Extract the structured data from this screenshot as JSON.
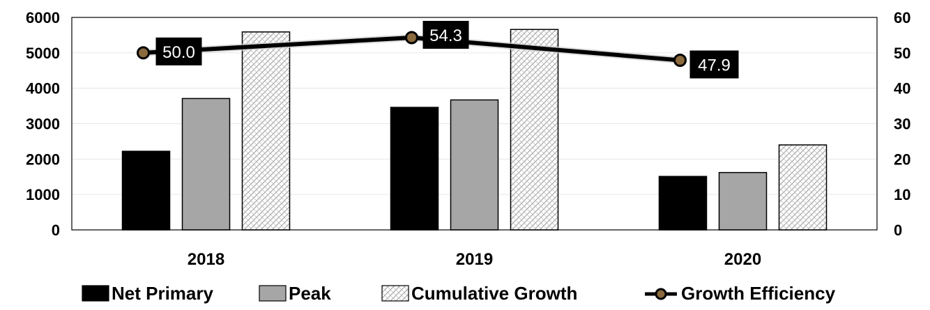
{
  "chart_data": {
    "type": "bar",
    "categories": [
      "2018",
      "2019",
      "2020"
    ],
    "series": [
      {
        "name": "Net Primary",
        "values": [
          2220,
          3460,
          1510
        ],
        "color": "#000000",
        "fill": "solid"
      },
      {
        "name": "Peak",
        "values": [
          3710,
          3670,
          1620
        ],
        "color": "#a6a6a6",
        "fill": "solid"
      },
      {
        "name": "Cumulative Growth",
        "values": [
          5590,
          5660,
          2400
        ],
        "color": "#ffffff",
        "fill": "hatch"
      }
    ],
    "line_series": {
      "name": "Growth Efficiency",
      "values": [
        50.0,
        54.3,
        47.9
      ],
      "labels": [
        "50.0",
        "54.3",
        "47.9"
      ],
      "axis": "right",
      "color": "#000000",
      "marker_color": "#8b6a3e"
    },
    "y_left": {
      "min": 0,
      "max": 6000,
      "ticks": [
        "0",
        "1000",
        "2000",
        "3000",
        "4000",
        "5000",
        "6000"
      ]
    },
    "y_right": {
      "min": 0,
      "max": 60,
      "ticks": [
        "0",
        "10",
        "20",
        "30",
        "40",
        "50",
        "60"
      ]
    },
    "grid": true,
    "legend_position": "bottom",
    "legend": [
      "Net Primary",
      "Peak",
      "Cumulative Growth",
      "Growth Efficiency"
    ]
  }
}
